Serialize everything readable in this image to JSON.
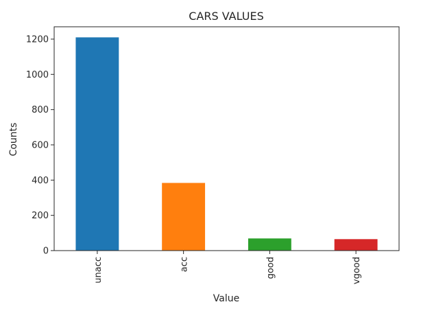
{
  "chart_data": {
    "type": "bar",
    "title": "CARS VALUES",
    "xlabel": "Value",
    "ylabel": "Counts",
    "categories": [
      "unacc",
      "acc",
      "good",
      "vgood"
    ],
    "values": [
      1210,
      384,
      69,
      65
    ],
    "ylim": [
      0,
      1270
    ],
    "yticks": [
      0,
      200,
      400,
      600,
      800,
      1000,
      1200
    ],
    "colors": [
      "#1f77b4",
      "#ff7f0e",
      "#2ca02c",
      "#d62728"
    ],
    "grid": false,
    "legend": "none"
  }
}
